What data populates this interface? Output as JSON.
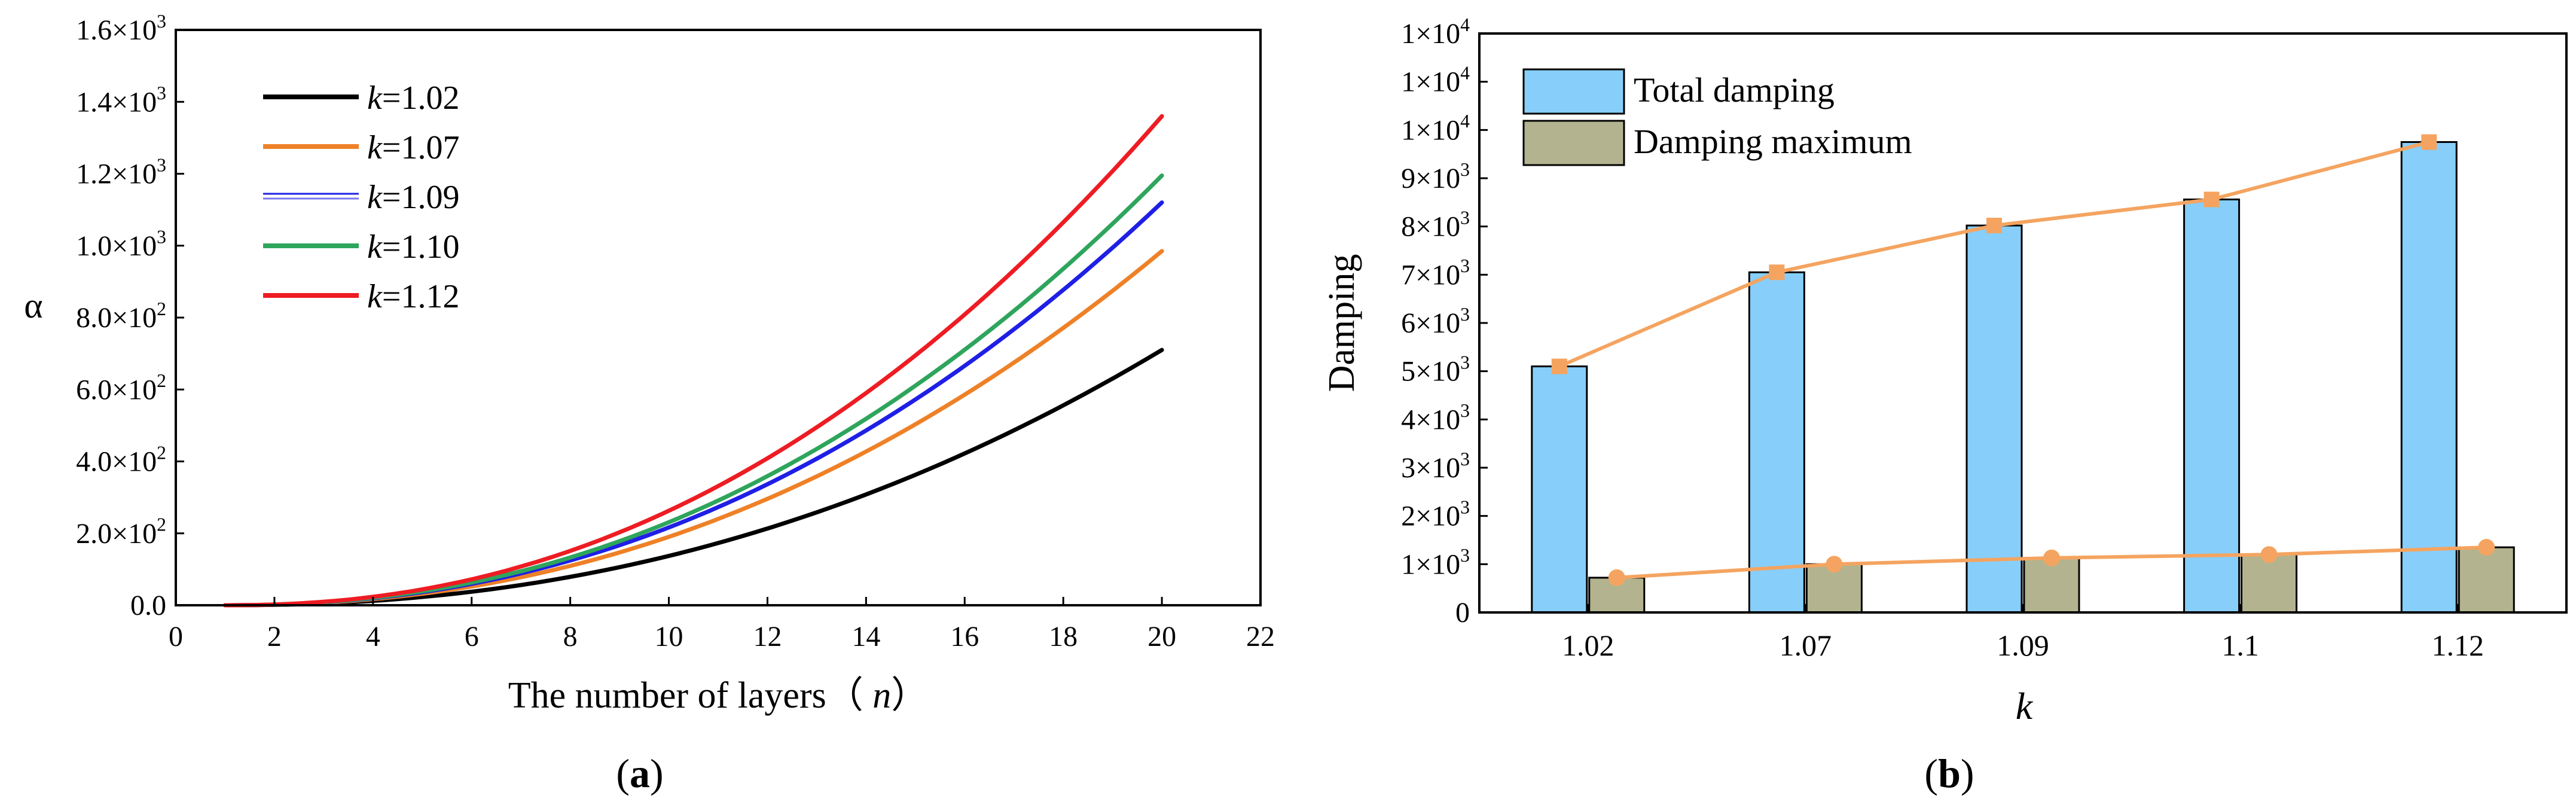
{
  "chart_data": [
    {
      "type": "line",
      "panel_label": "a",
      "xlabel": "The number of layers（ n）",
      "xlabel_prefix": "The number of layers（ ",
      "xlabel_var": "n",
      "xlabel_suffix": "）",
      "ylabel": "α",
      "xlim": [
        0,
        22
      ],
      "ylim": [
        0,
        1600
      ],
      "x_ticks": [
        0,
        2,
        4,
        6,
        8,
        10,
        12,
        14,
        16,
        18,
        20,
        22
      ],
      "y_ticks": [
        {
          "value": 0,
          "mantissa": "0.0",
          "exp": ""
        },
        {
          "value": 200,
          "mantissa": "2.0×10",
          "exp": "2"
        },
        {
          "value": 400,
          "mantissa": "4.0×10",
          "exp": "2"
        },
        {
          "value": 600,
          "mantissa": "6.0×10",
          "exp": "2"
        },
        {
          "value": 800,
          "mantissa": "8.0×10",
          "exp": "2"
        },
        {
          "value": 1000,
          "mantissa": "1.0×10",
          "exp": "3"
        },
        {
          "value": 1200,
          "mantissa": "1.2×10",
          "exp": "3"
        },
        {
          "value": 1400,
          "mantissa": "1.4×10",
          "exp": "3"
        },
        {
          "value": 1600,
          "mantissa": "1.6×10",
          "exp": "3"
        }
      ],
      "legend_location": "top-left",
      "series": [
        {
          "name": "k=1.02",
          "k_label": "k",
          "value_label": "=1.02",
          "color": "#000000",
          "x_start": 1,
          "x_end": 20,
          "y_end": 710
        },
        {
          "name": "k=1.07",
          "k_label": "k",
          "value_label": "=1.07",
          "color": "#ee8127",
          "x_start": 1,
          "x_end": 20,
          "y_end": 985
        },
        {
          "name": "k=1.09",
          "k_label": "k",
          "value_label": "=1.09",
          "color": "#1f1fe6",
          "x_start": 1,
          "x_end": 20,
          "y_end": 1120
        },
        {
          "name": "k=1.10",
          "k_label": "k",
          "value_label": "=1.10",
          "color": "#2ea55c",
          "x_start": 1,
          "x_end": 20,
          "y_end": 1195
        },
        {
          "name": "k=1.12",
          "k_label": "k",
          "value_label": "=1.12",
          "color": "#ee1c23",
          "x_start": 1,
          "x_end": 20,
          "y_end": 1360
        }
      ]
    },
    {
      "type": "bar",
      "panel_label": "b",
      "xlabel": "k",
      "ylabel": "Damping",
      "categories": [
        "1.02",
        "1.07",
        "1.09",
        "1.1",
        "1.12"
      ],
      "ylim": [
        0,
        12000
      ],
      "y_ticks": [
        {
          "value": 0,
          "mantissa": "0",
          "exp": ""
        },
        {
          "value": 1000,
          "mantissa": "1×10",
          "exp": "3"
        },
        {
          "value": 2000,
          "mantissa": "2×10",
          "exp": "3"
        },
        {
          "value": 3000,
          "mantissa": "3×10",
          "exp": "3"
        },
        {
          "value": 4000,
          "mantissa": "4×10",
          "exp": "3"
        },
        {
          "value": 5000,
          "mantissa": "5×10",
          "exp": "3"
        },
        {
          "value": 6000,
          "mantissa": "6×10",
          "exp": "3"
        },
        {
          "value": 7000,
          "mantissa": "7×10",
          "exp": "3"
        },
        {
          "value": 8000,
          "mantissa": "8×10",
          "exp": "3"
        },
        {
          "value": 9000,
          "mantissa": "9×10",
          "exp": "3"
        },
        {
          "value": 10000,
          "mantissa": "1×10",
          "exp": "4"
        },
        {
          "value": 11000,
          "mantissa": "1×10",
          "exp": "4"
        },
        {
          "value": 12000,
          "mantissa": "1×10",
          "exp": "4"
        }
      ],
      "legend_location": "top-left",
      "series": [
        {
          "name": "Total damping",
          "color": "#87cefa",
          "values": [
            5100,
            7050,
            8020,
            8560,
            9750
          ]
        },
        {
          "name": "Damping maximum",
          "color": "#b3b48f",
          "values": [
            720,
            1000,
            1130,
            1200,
            1350
          ]
        }
      ],
      "line_color": "#f4a460"
    }
  ]
}
